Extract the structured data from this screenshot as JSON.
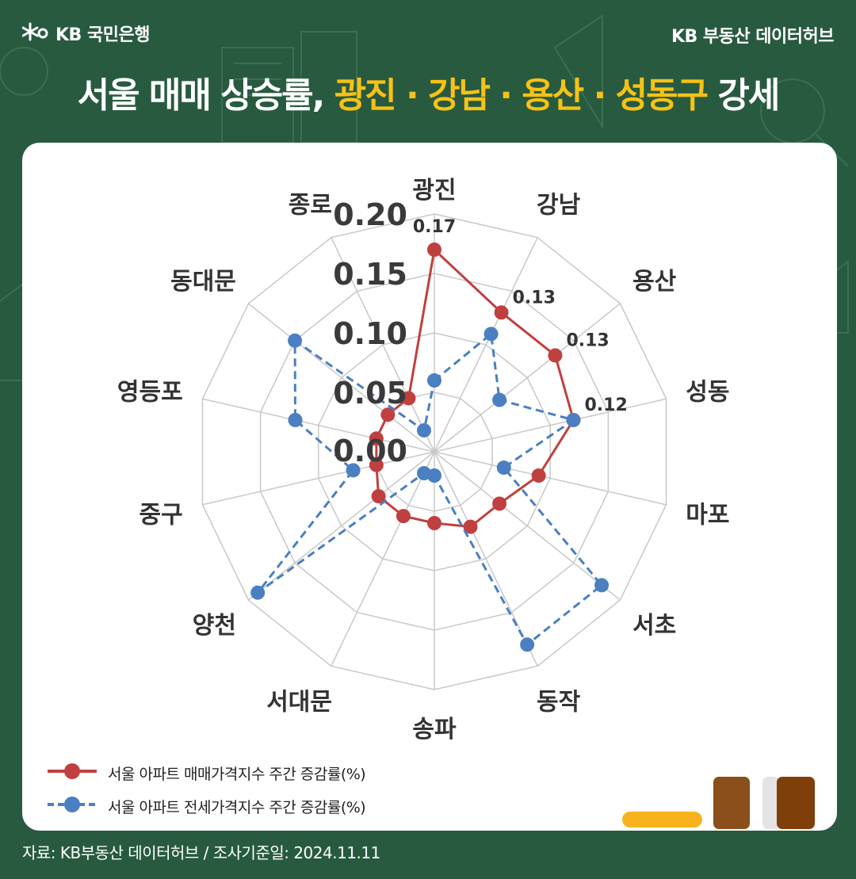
{
  "header": {
    "logo_text": "KB 국민은행",
    "brand": "KB 부동산  데이터허브"
  },
  "title": {
    "part1": "서울 매매 상승률, ",
    "highlight": "광진 · 강남 · 용산 · 성동구",
    "part2": " 강세"
  },
  "colors": {
    "background": "#285a40",
    "highlight": "#f7c215",
    "sale": "#c0403f",
    "jeonse": "#4a7fc1"
  },
  "chart_data": {
    "type": "radar",
    "categories": [
      "광진",
      "강남",
      "용산",
      "성동",
      "마포",
      "서초",
      "동작",
      "송파",
      "서대문",
      "양천",
      "중구",
      "영등포",
      "동대문",
      "종로"
    ],
    "rlim": [
      0,
      0.2
    ],
    "ticks": [
      "0.00",
      "0.05",
      "0.10",
      "0.15",
      "0.20"
    ],
    "series": [
      {
        "name": "서울 아파트 매매가격지수 주간 증감률(%)",
        "style": "solid",
        "values": [
          0.17,
          0.13,
          0.13,
          0.12,
          0.09,
          0.07,
          0.07,
          0.06,
          0.06,
          0.06,
          0.05,
          0.05,
          0.05,
          0.05
        ]
      },
      {
        "name": "서울 아파트 전세가격지수 주간 증감률(%)",
        "style": "dashed",
        "values": [
          0.06,
          0.11,
          0.07,
          0.12,
          0.06,
          0.18,
          0.18,
          0.02,
          0.02,
          0.19,
          0.07,
          0.12,
          0.15,
          0.02
        ]
      }
    ],
    "data_labels": [
      {
        "category": "광진",
        "text": "0.17"
      },
      {
        "category": "강남",
        "text": "0.13"
      },
      {
        "category": "용산",
        "text": "0.13"
      },
      {
        "category": "성동",
        "text": "0.12"
      }
    ]
  },
  "source": "자료: KB부동산 데이터허브 / 조사기준일: 2024.11.11"
}
